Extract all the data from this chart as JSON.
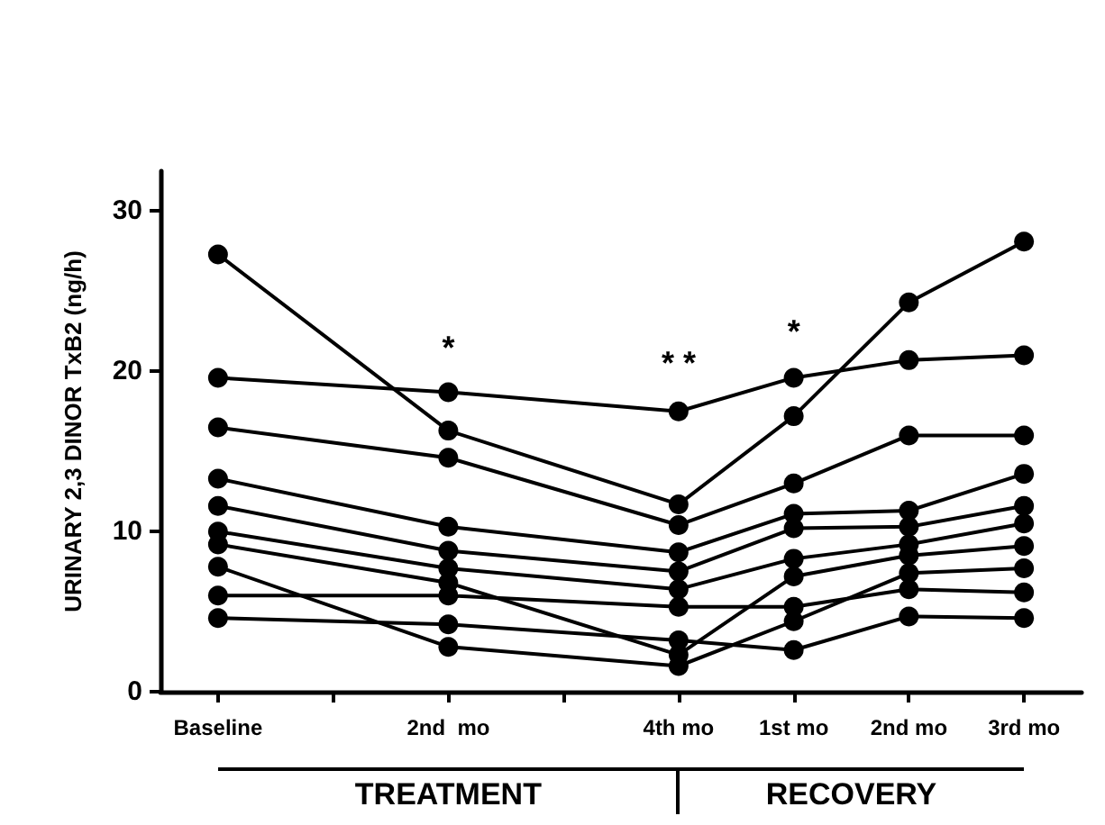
{
  "chart_data": {
    "type": "line",
    "ylabel": "URINARY 2,3 DINOR TxB2 (ng/h)",
    "categories": [
      "Baseline",
      null,
      "2nd  mo",
      null,
      "4th mo",
      "1st mo",
      "2nd mo",
      "3rd mo"
    ],
    "ylim": [
      0,
      32.5
    ],
    "yticks": [
      0,
      10,
      20,
      30
    ],
    "series": [
      {
        "color": "#000000",
        "values": [
          27.3,
          null,
          16.3,
          null,
          11.7,
          17.2,
          24.3,
          28.1
        ]
      },
      {
        "color": "#000000",
        "values": [
          19.6,
          null,
          18.7,
          null,
          17.5,
          19.6,
          20.7,
          21.0
        ]
      },
      {
        "color": "#000000",
        "values": [
          16.5,
          null,
          14.6,
          null,
          10.4,
          13.0,
          16.0,
          16.0
        ]
      },
      {
        "color": "#000000",
        "values": [
          13.3,
          null,
          10.3,
          null,
          8.7,
          11.1,
          11.3,
          13.6
        ]
      },
      {
        "color": "#000000",
        "values": [
          11.6,
          null,
          8.8,
          null,
          7.5,
          10.2,
          10.3,
          11.6
        ]
      },
      {
        "color": "#000000",
        "values": [
          10.0,
          null,
          7.7,
          null,
          6.4,
          8.3,
          9.2,
          10.5
        ]
      },
      {
        "color": "#000000",
        "values": [
          9.2,
          null,
          6.8,
          null,
          2.3,
          7.2,
          8.5,
          9.1
        ]
      },
      {
        "color": "#000000",
        "values": [
          7.8,
          null,
          2.8,
          null,
          1.6,
          4.4,
          7.4,
          7.7
        ]
      },
      {
        "color": "#000000",
        "values": [
          6.0,
          null,
          6.0,
          null,
          5.3,
          5.3,
          6.4,
          6.2
        ]
      },
      {
        "color": "#000000",
        "values": [
          4.6,
          null,
          4.2,
          null,
          3.2,
          2.6,
          4.7,
          4.6
        ]
      }
    ],
    "annotations": [
      "*",
      "* *",
      "*",
      "TREATMENT",
      "RECOVERY"
    ],
    "marker": "circle",
    "line_style": "solid",
    "grid": false
  }
}
